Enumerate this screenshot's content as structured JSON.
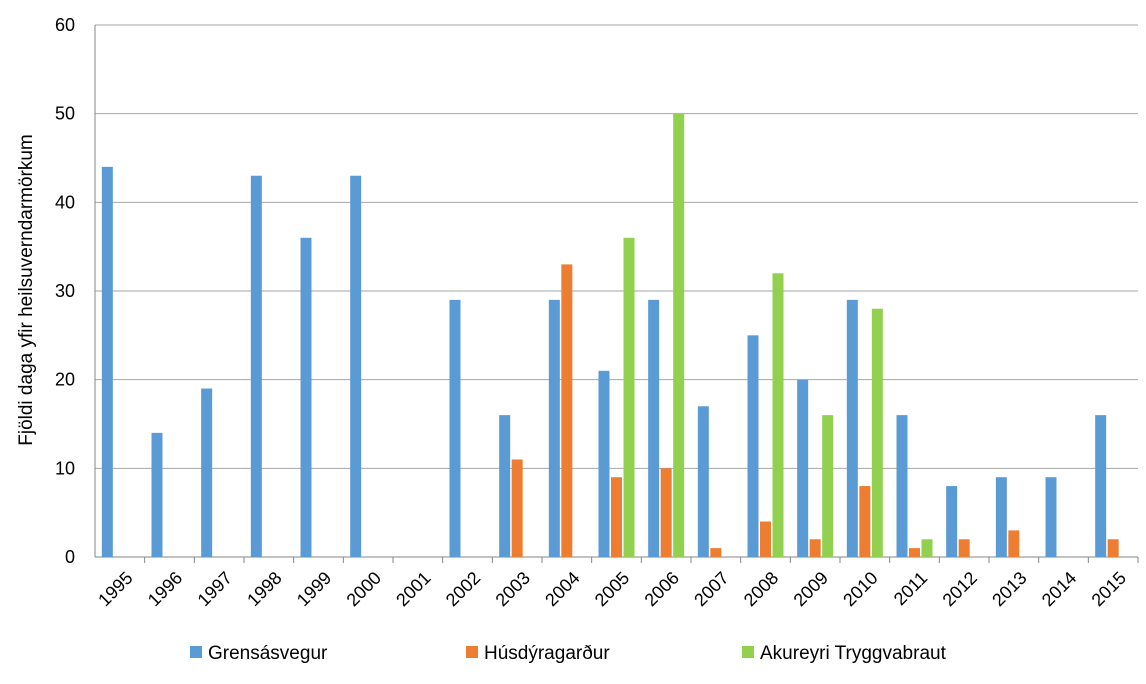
{
  "chart_data": {
    "type": "bar",
    "ylabel": "Fjöldi daga yfir heilsuverndarmörkum",
    "xlabel": "",
    "ylim": [
      0,
      60
    ],
    "yticks": [
      0,
      10,
      20,
      30,
      40,
      50,
      60
    ],
    "grid": true,
    "legend_position": "bottom",
    "categories": [
      "1995",
      "1996",
      "1997",
      "1998",
      "1999",
      "2000",
      "2001",
      "2002",
      "2003",
      "2004",
      "2005",
      "2006",
      "2007",
      "2008",
      "2009",
      "2010",
      "2011",
      "2012",
      "2013",
      "2014",
      "2015"
    ],
    "series": [
      {
        "name": "Grensásvegur",
        "color": "#5b9bd5",
        "values": [
          44,
          14,
          19,
          43,
          36,
          43,
          null,
          29,
          16,
          29,
          21,
          29,
          17,
          25,
          20,
          29,
          16,
          8,
          9,
          9,
          16
        ]
      },
      {
        "name": "Húsdýragarður",
        "color": "#ed7d31",
        "values": [
          null,
          null,
          null,
          null,
          null,
          null,
          null,
          null,
          11,
          33,
          9,
          10,
          1,
          4,
          2,
          8,
          1,
          2,
          3,
          null,
          2
        ]
      },
      {
        "name": "Akureyri Tryggvabraut",
        "color": "#92d050",
        "values": [
          null,
          null,
          null,
          null,
          null,
          null,
          null,
          null,
          null,
          null,
          36,
          50,
          null,
          32,
          16,
          28,
          2,
          null,
          null,
          null,
          null
        ]
      }
    ]
  }
}
